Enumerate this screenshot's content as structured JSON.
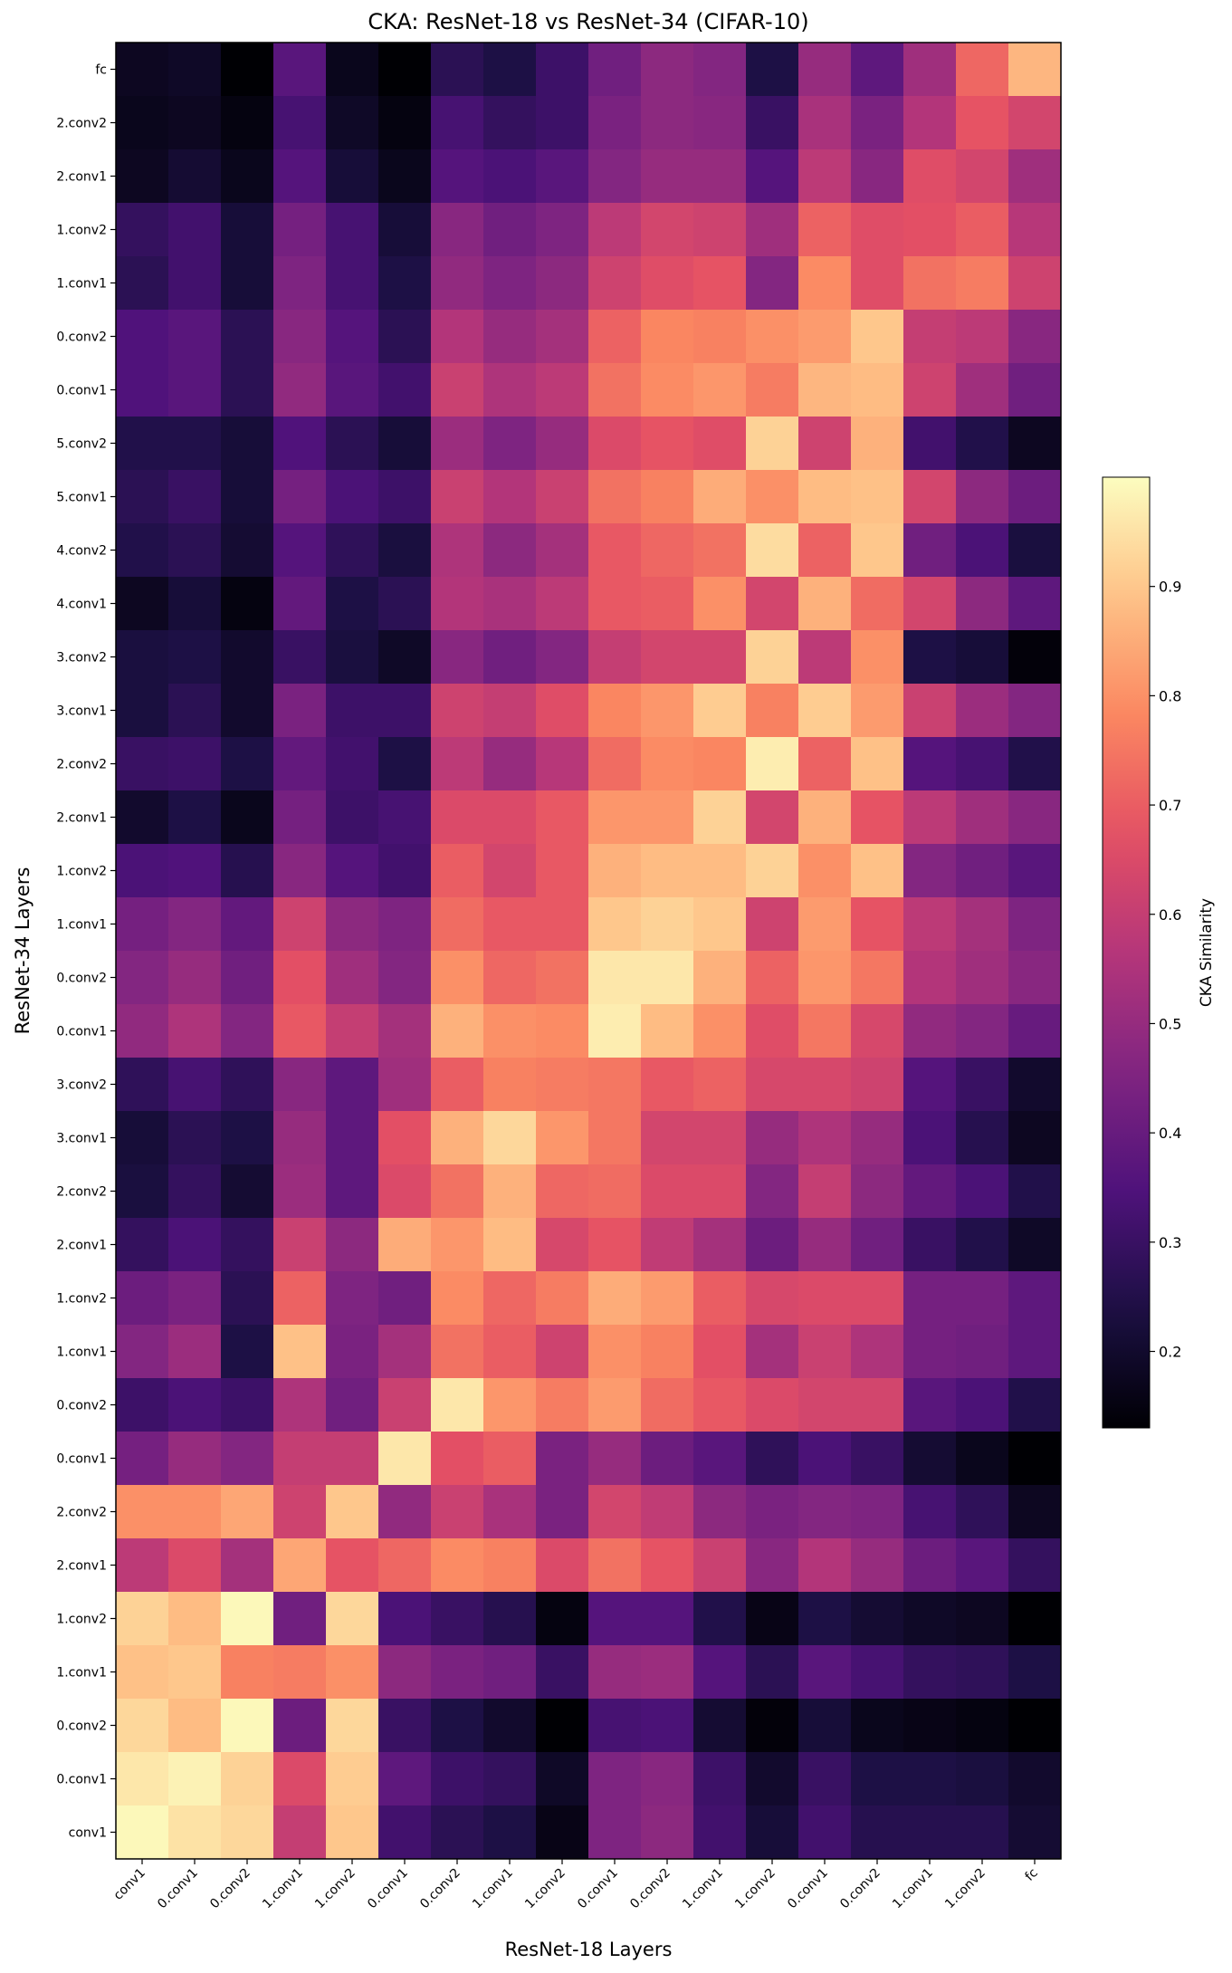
{
  "chart_data": {
    "type": "heatmap",
    "title": "CKA: ResNet-18 vs ResNet-34 (CIFAR-10)",
    "xlabel": "ResNet-18 Layers",
    "ylabel": "ResNet-34 Layers",
    "colorbar_label": "CKA Similarity",
    "colormap": "magma",
    "vmin": 0.13,
    "vmax": 1.0,
    "colorbar_ticks": [
      "0.2",
      "0.3",
      "0.4",
      "0.5",
      "0.6",
      "0.7",
      "0.8",
      "0.9"
    ],
    "x_categories": [
      "conv1",
      "0.conv1",
      "0.conv2",
      "1.conv1",
      "1.conv2",
      "0.conv1",
      "0.conv2",
      "1.conv1",
      "1.conv2",
      "0.conv1",
      "0.conv2",
      "1.conv1",
      "1.conv2",
      "0.conv1",
      "0.conv2",
      "1.conv1",
      "1.conv2",
      "fc"
    ],
    "y_categories_top_to_bottom": [
      "fc",
      "2.conv2",
      "2.conv1",
      "1.conv2",
      "1.conv1",
      "0.conv2",
      "0.conv1",
      "5.conv2",
      "5.conv1",
      "4.conv2",
      "4.conv1",
      "3.conv2",
      "3.conv1",
      "2.conv2",
      "2.conv1",
      "1.conv2",
      "1.conv1",
      "0.conv2",
      "0.conv1",
      "3.conv2",
      "3.conv1",
      "2.conv2",
      "2.conv1",
      "1.conv2",
      "1.conv1",
      "0.conv2",
      "0.conv1",
      "2.conv2",
      "2.conv1",
      "1.conv2",
      "1.conv1",
      "0.conv2",
      "0.conv1",
      "conv1"
    ],
    "values_top_to_bottom": [
      [
        0.18,
        0.19,
        0.13,
        0.37,
        0.17,
        0.13,
        0.27,
        0.24,
        0.31,
        0.42,
        0.48,
        0.46,
        0.24,
        0.5,
        0.38,
        0.52,
        0.72,
        0.87
      ],
      [
        0.17,
        0.18,
        0.15,
        0.33,
        0.19,
        0.15,
        0.33,
        0.29,
        0.31,
        0.44,
        0.48,
        0.47,
        0.3,
        0.54,
        0.44,
        0.56,
        0.68,
        0.63
      ],
      [
        0.18,
        0.21,
        0.17,
        0.36,
        0.22,
        0.17,
        0.36,
        0.34,
        0.37,
        0.46,
        0.5,
        0.5,
        0.36,
        0.58,
        0.47,
        0.66,
        0.63,
        0.52
      ],
      [
        0.29,
        0.32,
        0.22,
        0.43,
        0.33,
        0.22,
        0.47,
        0.42,
        0.45,
        0.58,
        0.63,
        0.62,
        0.52,
        0.71,
        0.66,
        0.67,
        0.7,
        0.57
      ],
      [
        0.27,
        0.32,
        0.22,
        0.45,
        0.33,
        0.24,
        0.49,
        0.45,
        0.48,
        0.62,
        0.66,
        0.68,
        0.46,
        0.79,
        0.66,
        0.74,
        0.76,
        0.62
      ],
      [
        0.35,
        0.37,
        0.27,
        0.47,
        0.36,
        0.27,
        0.56,
        0.5,
        0.53,
        0.71,
        0.78,
        0.77,
        0.8,
        0.82,
        0.9,
        0.6,
        0.58,
        0.47
      ],
      [
        0.35,
        0.37,
        0.27,
        0.49,
        0.37,
        0.32,
        0.61,
        0.55,
        0.58,
        0.74,
        0.79,
        0.81,
        0.76,
        0.87,
        0.88,
        0.62,
        0.52,
        0.42
      ],
      [
        0.25,
        0.25,
        0.22,
        0.35,
        0.27,
        0.22,
        0.51,
        0.45,
        0.5,
        0.65,
        0.68,
        0.66,
        0.92,
        0.62,
        0.86,
        0.32,
        0.25,
        0.18
      ],
      [
        0.27,
        0.3,
        0.22,
        0.43,
        0.34,
        0.31,
        0.61,
        0.56,
        0.61,
        0.74,
        0.77,
        0.85,
        0.8,
        0.88,
        0.89,
        0.63,
        0.48,
        0.41
      ],
      [
        0.25,
        0.27,
        0.21,
        0.36,
        0.28,
        0.23,
        0.55,
        0.48,
        0.53,
        0.69,
        0.72,
        0.74,
        0.94,
        0.71,
        0.9,
        0.42,
        0.34,
        0.23
      ],
      [
        0.18,
        0.22,
        0.15,
        0.39,
        0.24,
        0.27,
        0.56,
        0.54,
        0.58,
        0.69,
        0.7,
        0.8,
        0.63,
        0.86,
        0.73,
        0.63,
        0.48,
        0.38
      ],
      [
        0.23,
        0.24,
        0.2,
        0.3,
        0.23,
        0.19,
        0.47,
        0.42,
        0.46,
        0.6,
        0.63,
        0.63,
        0.92,
        0.58,
        0.8,
        0.24,
        0.22,
        0.14
      ],
      [
        0.23,
        0.27,
        0.2,
        0.44,
        0.31,
        0.31,
        0.62,
        0.6,
        0.66,
        0.78,
        0.81,
        0.91,
        0.77,
        0.91,
        0.82,
        0.61,
        0.51,
        0.46
      ],
      [
        0.3,
        0.31,
        0.24,
        0.39,
        0.32,
        0.24,
        0.58,
        0.5,
        0.57,
        0.73,
        0.79,
        0.78,
        0.97,
        0.71,
        0.89,
        0.36,
        0.33,
        0.25
      ],
      [
        0.2,
        0.24,
        0.17,
        0.43,
        0.31,
        0.33,
        0.65,
        0.65,
        0.69,
        0.81,
        0.81,
        0.92,
        0.63,
        0.86,
        0.68,
        0.58,
        0.52,
        0.47
      ],
      [
        0.34,
        0.35,
        0.26,
        0.47,
        0.36,
        0.32,
        0.7,
        0.63,
        0.69,
        0.86,
        0.88,
        0.88,
        0.92,
        0.8,
        0.89,
        0.46,
        0.42,
        0.37
      ],
      [
        0.43,
        0.46,
        0.39,
        0.62,
        0.48,
        0.45,
        0.73,
        0.69,
        0.69,
        0.9,
        0.92,
        0.9,
        0.62,
        0.82,
        0.68,
        0.58,
        0.53,
        0.45
      ],
      [
        0.46,
        0.5,
        0.42,
        0.67,
        0.52,
        0.46,
        0.8,
        0.72,
        0.74,
        0.96,
        0.96,
        0.86,
        0.71,
        0.81,
        0.75,
        0.56,
        0.52,
        0.47
      ],
      [
        0.49,
        0.55,
        0.46,
        0.69,
        0.6,
        0.53,
        0.86,
        0.8,
        0.79,
        0.97,
        0.88,
        0.8,
        0.66,
        0.75,
        0.64,
        0.49,
        0.46,
        0.4
      ],
      [
        0.28,
        0.33,
        0.28,
        0.47,
        0.38,
        0.52,
        0.7,
        0.77,
        0.76,
        0.75,
        0.69,
        0.71,
        0.64,
        0.64,
        0.62,
        0.36,
        0.3,
        0.2
      ],
      [
        0.22,
        0.27,
        0.24,
        0.5,
        0.38,
        0.67,
        0.86,
        0.93,
        0.81,
        0.75,
        0.63,
        0.63,
        0.5,
        0.55,
        0.5,
        0.34,
        0.26,
        0.18
      ],
      [
        0.23,
        0.29,
        0.21,
        0.51,
        0.38,
        0.65,
        0.74,
        0.86,
        0.72,
        0.73,
        0.65,
        0.65,
        0.46,
        0.6,
        0.48,
        0.39,
        0.34,
        0.25
      ],
      [
        0.29,
        0.34,
        0.29,
        0.61,
        0.48,
        0.85,
        0.81,
        0.88,
        0.64,
        0.68,
        0.59,
        0.53,
        0.41,
        0.5,
        0.42,
        0.3,
        0.25,
        0.19
      ],
      [
        0.41,
        0.44,
        0.27,
        0.71,
        0.45,
        0.42,
        0.79,
        0.72,
        0.76,
        0.85,
        0.82,
        0.7,
        0.64,
        0.65,
        0.65,
        0.43,
        0.43,
        0.38
      ],
      [
        0.46,
        0.51,
        0.24,
        0.89,
        0.44,
        0.53,
        0.74,
        0.7,
        0.62,
        0.8,
        0.77,
        0.67,
        0.53,
        0.61,
        0.55,
        0.43,
        0.42,
        0.38
      ],
      [
        0.31,
        0.34,
        0.31,
        0.55,
        0.42,
        0.61,
        0.96,
        0.81,
        0.76,
        0.82,
        0.73,
        0.69,
        0.65,
        0.63,
        0.63,
        0.37,
        0.34,
        0.25
      ],
      [
        0.43,
        0.5,
        0.46,
        0.6,
        0.6,
        0.96,
        0.67,
        0.7,
        0.44,
        0.5,
        0.41,
        0.37,
        0.28,
        0.34,
        0.3,
        0.21,
        0.17,
        0.13
      ],
      [
        0.8,
        0.8,
        0.84,
        0.62,
        0.9,
        0.49,
        0.61,
        0.54,
        0.44,
        0.63,
        0.59,
        0.48,
        0.44,
        0.46,
        0.45,
        0.33,
        0.28,
        0.18
      ],
      [
        0.58,
        0.65,
        0.53,
        0.84,
        0.68,
        0.72,
        0.79,
        0.77,
        0.65,
        0.74,
        0.68,
        0.61,
        0.47,
        0.56,
        0.5,
        0.41,
        0.37,
        0.29
      ],
      [
        0.92,
        0.88,
        0.99,
        0.42,
        0.93,
        0.34,
        0.3,
        0.26,
        0.15,
        0.36,
        0.36,
        0.25,
        0.16,
        0.24,
        0.21,
        0.19,
        0.18,
        0.13
      ],
      [
        0.89,
        0.9,
        0.77,
        0.76,
        0.8,
        0.48,
        0.44,
        0.42,
        0.3,
        0.5,
        0.51,
        0.36,
        0.27,
        0.37,
        0.33,
        0.29,
        0.28,
        0.24
      ],
      [
        0.93,
        0.88,
        0.99,
        0.41,
        0.93,
        0.3,
        0.24,
        0.2,
        0.13,
        0.33,
        0.34,
        0.21,
        0.14,
        0.22,
        0.17,
        0.16,
        0.15,
        0.13
      ],
      [
        0.96,
        0.98,
        0.92,
        0.65,
        0.91,
        0.38,
        0.31,
        0.29,
        0.19,
        0.45,
        0.47,
        0.31,
        0.2,
        0.3,
        0.24,
        0.24,
        0.23,
        0.2
      ],
      [
        0.99,
        0.95,
        0.93,
        0.6,
        0.9,
        0.32,
        0.27,
        0.24,
        0.16,
        0.45,
        0.48,
        0.32,
        0.22,
        0.32,
        0.26,
        0.26,
        0.26,
        0.21
      ]
    ]
  }
}
